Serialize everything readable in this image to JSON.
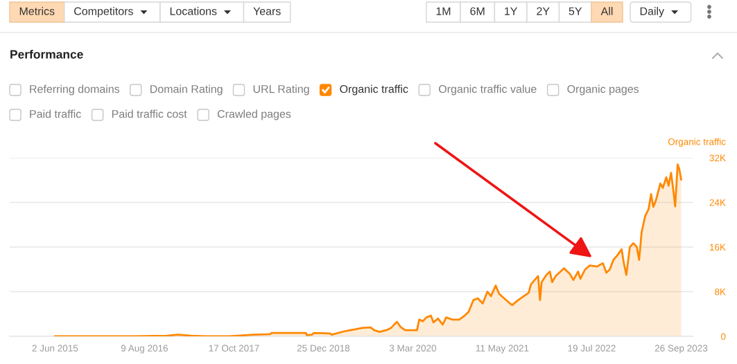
{
  "chart_data": {
    "type": "area",
    "title": "Performance",
    "ylabel": "Organic traffic",
    "annotations": [
      "Metrics",
      "Competitors",
      "Locations",
      "Years",
      "1M",
      "6M",
      "1Y",
      "2Y",
      "5Y",
      "All",
      "Daily",
      "Referring domains",
      "Domain Rating",
      "URL Rating",
      "Organic traffic value",
      "Organic pages",
      "Paid traffic",
      "Paid traffic cost",
      "Crawled pages"
    ],
    "x": [
      "2015-06-02",
      "2016-06-19",
      "2016-11-28",
      "2017-01-19",
      "2017-03-24",
      "2017-06-02",
      "2017-09-26",
      "2018-01-20",
      "2018-04-11",
      "2018-04-17",
      "2018-08-28",
      "2018-10-02",
      "2018-10-05",
      "2018-10-31",
      "2018-11-08",
      "2019-01-26",
      "2019-02-03",
      "2019-04-06",
      "2019-06-02",
      "2019-07-01",
      "2019-08-11",
      "2019-08-29",
      "2019-09-22",
      "2019-10-26",
      "2019-11-18",
      "2019-12-17",
      "2020-01-03",
      "2020-01-26",
      "2020-03-11",
      "2020-03-23",
      "2020-04-03",
      "2020-04-20",
      "2020-05-08",
      "2020-05-30",
      "2020-06-11",
      "2020-07-03",
      "2020-07-26",
      "2020-08-12",
      "2020-09-10",
      "2020-10-14",
      "2020-11-06",
      "2020-11-29",
      "2020-12-22",
      "2021-01-13",
      "2021-02-05",
      "2021-02-28",
      "2021-03-17",
      "2021-04-09",
      "2021-04-26",
      "2021-05-14",
      "2021-06-11",
      "2021-06-28",
      "2021-07-27",
      "2021-08-24",
      "2021-09-16",
      "2021-09-27",
      "2021-10-15",
      "2021-11-01",
      "2021-11-10",
      "2021-11-18",
      "2021-12-11",
      "2021-12-28",
      "2022-01-08",
      "2022-01-25",
      "2022-03-06",
      "2022-04-04",
      "2022-04-21",
      "2022-05-14",
      "2022-05-25",
      "2022-06-17",
      "2022-07-10",
      "2022-08-13",
      "2022-09-11",
      "2022-09-28",
      "2022-10-15",
      "2022-11-01",
      "2022-11-18",
      "2022-12-11",
      "2022-12-22",
      "2023-01-03",
      "2023-01-20",
      "2023-02-06",
      "2023-02-23",
      "2023-03-06",
      "2023-03-18",
      "2023-04-04",
      "2023-04-21",
      "2023-05-03",
      "2023-05-14",
      "2023-05-26",
      "2023-06-17",
      "2023-06-29",
      "2023-07-16",
      "2023-07-27",
      "2023-08-08",
      "2023-08-19",
      "2023-08-28",
      "2023-09-09",
      "2023-09-17",
      "2023-09-26"
    ],
    "series": [
      {
        "name": "Organic traffic",
        "color": "#ff8800",
        "values": [
          0,
          0,
          100,
          300,
          100,
          0,
          0,
          300,
          400,
          600,
          600,
          600,
          200,
          300,
          600,
          500,
          300,
          900,
          1300,
          1500,
          1600,
          1100,
          800,
          1100,
          1500,
          2600,
          1700,
          1100,
          1100,
          1100,
          3000,
          2700,
          3400,
          3700,
          2500,
          3200,
          2100,
          3400,
          3000,
          3000,
          3600,
          4400,
          6500,
          6800,
          5900,
          8000,
          7200,
          9100,
          7600,
          7000,
          6100,
          5600,
          6500,
          7200,
          7800,
          9300,
          10100,
          10800,
          6500,
          9700,
          11000,
          11600,
          9700,
          10800,
          12200,
          11200,
          10100,
          11600,
          10300,
          12000,
          12700,
          12500,
          13100,
          11400,
          12000,
          13700,
          14400,
          15600,
          13100,
          11000,
          16000,
          16700,
          16000,
          13700,
          18600,
          21500,
          22800,
          25500,
          23200,
          24300,
          27400,
          26600,
          28500,
          27000,
          29300,
          26200,
          23300,
          30800,
          30000,
          28100
        ]
      }
    ],
    "xlim": [
      "2014-10-25",
      "2023-11-24"
    ],
    "xticks": [
      {
        "value": "2015-06-02",
        "label": "2 Jun 2015"
      },
      {
        "value": "2016-08-09",
        "label": "9 Aug 2016"
      },
      {
        "value": "2017-10-17",
        "label": "17 Oct 2017"
      },
      {
        "value": "2018-12-25",
        "label": "25 Dec 2018"
      },
      {
        "value": "2020-03-03",
        "label": "3 Mar 2020"
      },
      {
        "value": "2021-05-11",
        "label": "11 May 2021"
      },
      {
        "value": "2022-07-19",
        "label": "19 Jul 2022"
      },
      {
        "value": "2023-09-26",
        "label": "26 Sep 2023"
      }
    ],
    "ylim": [
      0,
      32000
    ],
    "yticks": [
      0,
      {
        "value": 8000,
        "label": "8K"
      },
      {
        "value": 16000,
        "label": "16K"
      },
      {
        "value": 24000,
        "label": "24K"
      },
      {
        "value": 32000,
        "label": "32K"
      }
    ],
    "grid": "y",
    "legend": "top left"
  }
}
